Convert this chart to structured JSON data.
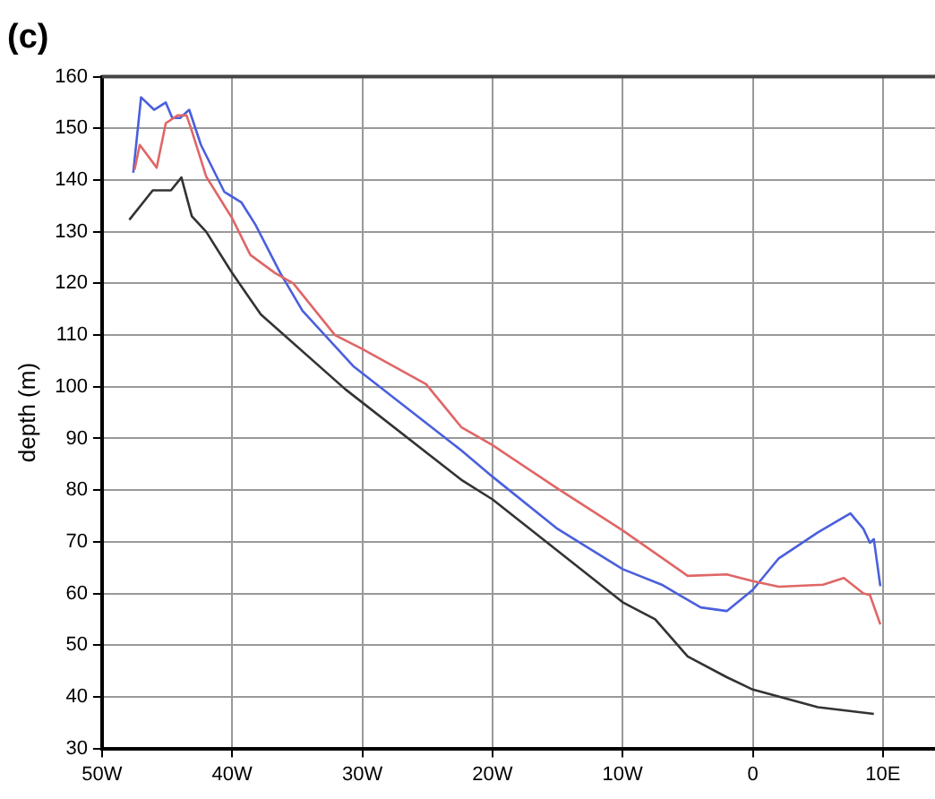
{
  "chart_data": {
    "type": "line",
    "title": "(c)",
    "ylabel": "depth (m)",
    "xlim": [
      -50,
      14
    ],
    "xticks": [
      {
        "value": -50,
        "label": "50W"
      },
      {
        "value": -40,
        "label": "40W"
      },
      {
        "value": -30,
        "label": "30W"
      },
      {
        "value": -20,
        "label": "20W"
      },
      {
        "value": -10,
        "label": "10W"
      },
      0,
      {
        "value": 10,
        "label": "10E"
      }
    ],
    "ylim": [
      30,
      160
    ],
    "yticks": [
      30,
      40,
      50,
      60,
      70,
      80,
      90,
      100,
      110,
      120,
      130,
      140,
      150,
      160
    ],
    "grid": true,
    "legend": false,
    "marker": "none",
    "line_style": "solid",
    "series": [
      {
        "color": "#333333",
        "x": [
          -47.9,
          -46.1,
          -44.7,
          -43.9,
          -43.1,
          -42,
          -40,
          -38.9,
          -37.8,
          -31.3,
          -22.4,
          -20,
          -10,
          -7.5,
          -5,
          -2,
          0,
          5,
          9.3
        ],
        "values": [
          132.3,
          138,
          138,
          140.5,
          133,
          130,
          122,
          118,
          114,
          99.5,
          82,
          78.2,
          58.3,
          55,
          47.8,
          43.8,
          41.4,
          38,
          36.7
        ]
      },
      {
        "color": "#e06666",
        "x": [
          -47.5,
          -47.1,
          -45.8,
          -45.1,
          -44.2,
          -43.5,
          -43.1,
          -42,
          -40,
          -38.6,
          -36.7,
          -35.3,
          -32.1,
          -30,
          -25.1,
          -22.4,
          -20,
          -15,
          -10,
          -5,
          -2,
          0,
          2,
          5.4,
          7,
          8.5,
          9,
          9.8
        ],
        "values": [
          142,
          146.8,
          142.4,
          151,
          152.5,
          152.5,
          149.5,
          140.7,
          132.6,
          125.5,
          122,
          120,
          110,
          107.3,
          100.5,
          92.2,
          88.7,
          80.3,
          72.2,
          63.4,
          63.7,
          62.4,
          61.3,
          61.7,
          63,
          60,
          59.7,
          54
        ]
      },
      {
        "color": "#4a5fdd",
        "x": [
          -47.6,
          -47,
          -46,
          -45.1,
          -44.6,
          -44,
          -43.3,
          -42.4,
          -40.6,
          -39.3,
          -38.2,
          -36.3,
          -34.6,
          -30.7,
          -22.4,
          -20,
          -15,
          -10,
          -7,
          -4,
          -2,
          0,
          2,
          5,
          7.5,
          8.5,
          9,
          9.3,
          9.8
        ],
        "values": [
          141.4,
          156,
          153.6,
          155,
          152,
          152,
          153.6,
          146.8,
          137.7,
          135.7,
          131.3,
          122,
          114.7,
          104,
          87.7,
          82.6,
          72.5,
          64.7,
          61.7,
          57.3,
          56.6,
          60.7,
          66.8,
          71.8,
          75.5,
          72.5,
          69.8,
          70.5,
          61.4
        ]
      }
    ]
  }
}
